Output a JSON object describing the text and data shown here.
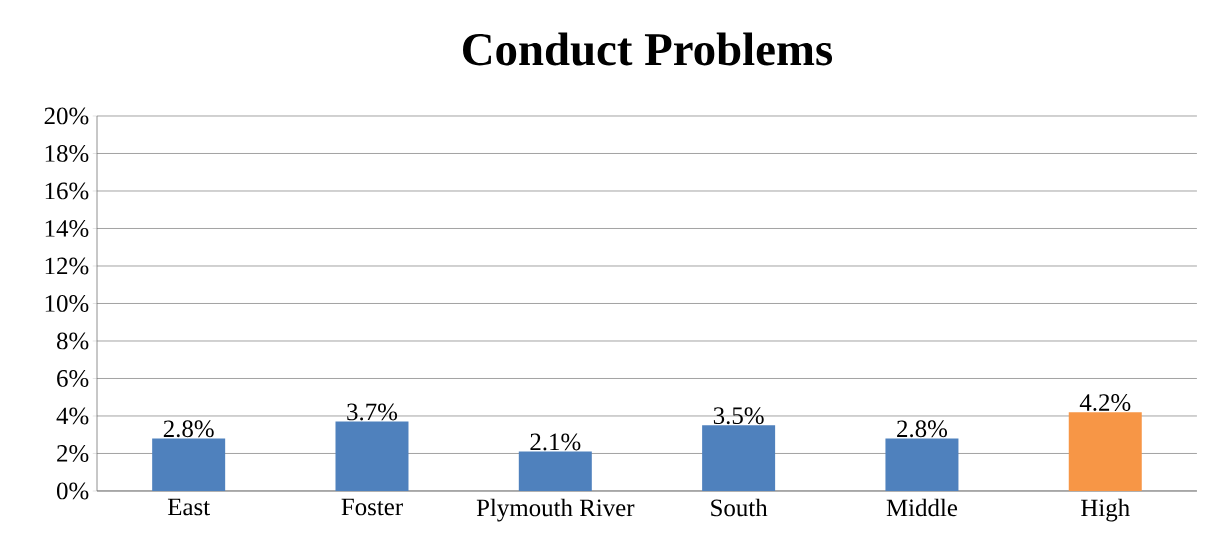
{
  "chart_data": {
    "type": "bar",
    "title": "Conduct Problems",
    "categories": [
      "East",
      "Foster",
      "Plymouth River",
      "South",
      "Middle",
      "High"
    ],
    "values": [
      2.8,
      3.7,
      2.1,
      3.5,
      2.8,
      4.2
    ],
    "colors": [
      "#4f81bd",
      "#4f81bd",
      "#4f81bd",
      "#4f81bd",
      "#4f81bd",
      "#f79646"
    ],
    "value_labels": [
      "2.8%",
      "3.7%",
      "2.1%",
      "3.5%",
      "2.8%",
      "4.2%"
    ],
    "ylim": [
      0,
      20
    ],
    "yticks": [
      {
        "value": 0,
        "label": "0%"
      },
      {
        "value": 2,
        "label": "2%"
      },
      {
        "value": 4,
        "label": "4%"
      },
      {
        "value": 6,
        "label": "6%"
      },
      {
        "value": 8,
        "label": "8%"
      },
      {
        "value": 10,
        "label": "10%"
      },
      {
        "value": 12,
        "label": "12%"
      },
      {
        "value": 14,
        "label": "14%"
      },
      {
        "value": 16,
        "label": "16%"
      },
      {
        "value": 18,
        "label": "18%"
      },
      {
        "value": 20,
        "label": "20%"
      }
    ],
    "grid": "y"
  }
}
